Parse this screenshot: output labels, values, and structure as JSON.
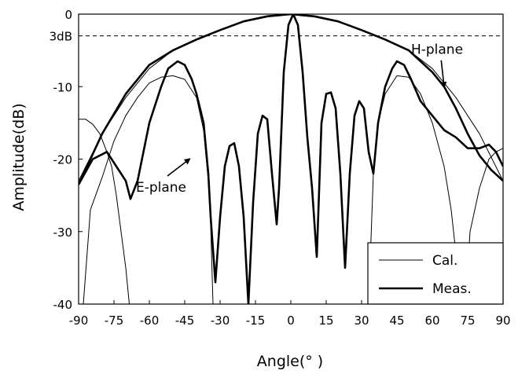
{
  "chart_data": {
    "type": "line",
    "title": "",
    "xlabel": "Angle(° )",
    "ylabel": "Amplitude(dB)",
    "xlim": [
      -90,
      90
    ],
    "ylim": [
      -40,
      0
    ],
    "x_ticks": [
      -90,
      -75,
      -60,
      -45,
      -30,
      -15,
      0,
      15,
      30,
      45,
      60,
      75,
      90
    ],
    "y_ticks": [
      0,
      -10,
      -20,
      -30,
      -40
    ],
    "y_tick_labels": [
      "0",
      "-10",
      "-20",
      "-30",
      "-40"
    ],
    "reference_line": {
      "y": -3,
      "label": "3dB",
      "style": "dashed"
    },
    "grid": false,
    "legend": {
      "placement": "bottom-right",
      "entries": [
        {
          "label": "Cal.",
          "style": "thin"
        },
        {
          "label": "Meas.",
          "style": "thick"
        }
      ]
    },
    "annotations": [
      {
        "text": "H-plane",
        "x": 62,
        "y": -5.5,
        "arrow_to": [
          65,
          -10
        ]
      },
      {
        "text": "E-plane",
        "x": -55,
        "y": -24.5,
        "arrow_to": [
          -43,
          -20
        ]
      }
    ],
    "series": [
      {
        "style": "thick",
        "points": [
          [
            -90,
            -23.5
          ],
          [
            -84,
            -20
          ],
          [
            -78,
            -19
          ],
          [
            -70,
            -23
          ],
          [
            -68,
            -25.5
          ],
          [
            -65,
            -23
          ],
          [
            -60,
            -15
          ],
          [
            -55,
            -10
          ],
          [
            -52,
            -7.5
          ],
          [
            -48,
            -6.5
          ],
          [
            -45,
            -7
          ],
          [
            -42,
            -9
          ],
          [
            -40,
            -11
          ],
          [
            -37,
            -15
          ],
          [
            -35,
            -22
          ],
          [
            -34,
            -28
          ],
          [
            -32,
            -37
          ],
          [
            -30,
            -28
          ],
          [
            -28,
            -21
          ],
          [
            -26,
            -18.2
          ],
          [
            -24,
            -17.8
          ],
          [
            -22,
            -21
          ],
          [
            -20,
            -28
          ],
          [
            -18,
            -40
          ],
          [
            -16,
            -26
          ],
          [
            -14,
            -16.5
          ],
          [
            -12,
            -14
          ],
          [
            -10,
            -14.5
          ],
          [
            -8,
            -22
          ],
          [
            -6,
            -29
          ],
          [
            -5,
            -24
          ],
          [
            -3,
            -8
          ],
          [
            -1,
            -1.5
          ],
          [
            1,
            0
          ],
          [
            3,
            -1.5
          ],
          [
            5,
            -8
          ],
          [
            7,
            -17
          ],
          [
            9,
            -24
          ],
          [
            11,
            -33.5
          ],
          [
            13,
            -15
          ],
          [
            15,
            -11
          ],
          [
            17,
            -10.8
          ],
          [
            19,
            -13
          ],
          [
            21,
            -22
          ],
          [
            23,
            -35
          ],
          [
            25,
            -22
          ],
          [
            27,
            -14
          ],
          [
            29,
            -12
          ],
          [
            31,
            -13
          ],
          [
            33,
            -19
          ],
          [
            35,
            -22
          ],
          [
            37,
            -15
          ],
          [
            40,
            -10
          ],
          [
            43,
            -7.5
          ],
          [
            45,
            -6.5
          ],
          [
            48,
            -7
          ],
          [
            51,
            -9
          ],
          [
            55,
            -12
          ],
          [
            60,
            -14
          ],
          [
            65,
            -16
          ],
          [
            70,
            -17
          ],
          [
            75,
            -18.5
          ],
          [
            80,
            -18.5
          ],
          [
            84,
            -18
          ],
          [
            87,
            -19
          ],
          [
            90,
            -21
          ]
        ]
      },
      {
        "style": "thick",
        "points": [
          [
            -90,
            -23.5
          ],
          [
            -80,
            -16.5
          ],
          [
            -70,
            -11
          ],
          [
            -60,
            -7
          ],
          [
            -50,
            -5
          ],
          [
            -40,
            -3.5
          ],
          [
            -30,
            -2.2
          ],
          [
            -20,
            -1
          ],
          [
            -10,
            -0.3
          ],
          [
            0,
            0
          ],
          [
            10,
            -0.3
          ],
          [
            20,
            -1
          ],
          [
            30,
            -2.2
          ],
          [
            40,
            -3.5
          ],
          [
            50,
            -5
          ],
          [
            55,
            -6.5
          ],
          [
            60,
            -8
          ],
          [
            65,
            -10
          ],
          [
            70,
            -13
          ],
          [
            75,
            -16.5
          ],
          [
            80,
            -19.5
          ],
          [
            85,
            -21.5
          ],
          [
            90,
            -23
          ]
        ]
      },
      {
        "style": "thin",
        "points": [
          [
            -90,
            -14.5
          ],
          [
            -87,
            -14.5
          ],
          [
            -84,
            -15.2
          ],
          [
            -81,
            -16.5
          ],
          [
            -78,
            -19
          ],
          [
            -76,
            -21
          ],
          [
            -74,
            -25
          ],
          [
            -72,
            -30
          ],
          [
            -70,
            -35
          ],
          [
            -68.5,
            -40
          ]
        ]
      },
      {
        "style": "thin",
        "points": [
          [
            -88,
            -40
          ],
          [
            -85,
            -27
          ],
          [
            -80,
            -22.5
          ],
          [
            -75,
            -17.5
          ],
          [
            -70,
            -14
          ],
          [
            -65,
            -11.5
          ],
          [
            -60,
            -9.5
          ],
          [
            -55,
            -8.7
          ],
          [
            -50,
            -8.5
          ],
          [
            -45,
            -9
          ],
          [
            -40,
            -11.5
          ],
          [
            -37,
            -16
          ],
          [
            -35,
            -23
          ],
          [
            -34,
            -29
          ],
          [
            -33,
            -40
          ]
        ]
      },
      {
        "style": "thin",
        "points": [
          [
            -90,
            -23
          ],
          [
            -80,
            -16.5
          ],
          [
            -70,
            -11.5
          ],
          [
            -60,
            -7.5
          ],
          [
            -50,
            -5
          ],
          [
            -40,
            -3.5
          ],
          [
            -30,
            -2.2
          ],
          [
            -20,
            -1
          ],
          [
            -10,
            -0.3
          ],
          [
            0,
            0
          ],
          [
            10,
            -0.3
          ],
          [
            20,
            -1
          ],
          [
            30,
            -2.2
          ],
          [
            40,
            -3.5
          ],
          [
            50,
            -5
          ],
          [
            60,
            -7.5
          ],
          [
            70,
            -11.5
          ],
          [
            80,
            -16.5
          ],
          [
            90,
            -23
          ]
        ]
      },
      {
        "style": "thin",
        "points": [
          [
            33,
            -40
          ],
          [
            35,
            -22
          ],
          [
            37,
            -15
          ],
          [
            40,
            -11
          ],
          [
            45,
            -8.5
          ],
          [
            50,
            -8.7
          ],
          [
            55,
            -11
          ],
          [
            60,
            -15
          ],
          [
            65,
            -21
          ],
          [
            68,
            -27
          ],
          [
            70,
            -33
          ],
          [
            72,
            -40
          ]
        ]
      },
      {
        "style": "thin",
        "points": [
          [
            74,
            -40
          ],
          [
            76,
            -30
          ],
          [
            80,
            -24
          ],
          [
            84,
            -20
          ],
          [
            87,
            -19
          ],
          [
            90,
            -18.5
          ]
        ]
      }
    ]
  }
}
